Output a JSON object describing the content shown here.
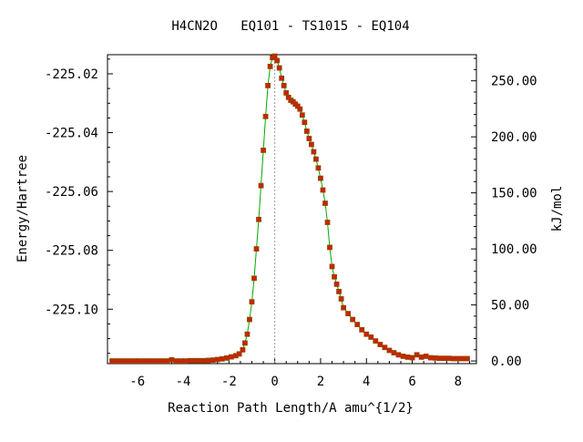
{
  "chart_data": {
    "type": "line",
    "title": "H4CN2O   EQ101 - TS1015 - EQ104",
    "xlabel": "Reaction Path Length/A amu^{1/2}",
    "ylabel_left": "Energy/Hartree",
    "ylabel_right": "kJ/mol",
    "xlim": [
      -7.3,
      8.8
    ],
    "ylim": [
      -225.1185,
      -225.0135
    ],
    "x_ticks": [
      -6,
      -4,
      -2,
      0,
      2,
      4,
      6,
      8
    ],
    "x_tick_labels": [
      "-6",
      "-4",
      "-2",
      "0",
      "2",
      "4",
      "6",
      "8"
    ],
    "y_ticks_left": [
      -225.02,
      -225.04,
      -225.06,
      -225.08,
      -225.1
    ],
    "y_tick_labels_left": [
      "-225.02",
      "-225.04",
      "-225.06",
      "-225.08",
      "-225.10"
    ],
    "y_ticks_right_kj": [
      0,
      50,
      100,
      150,
      200,
      250
    ],
    "y_tick_labels_right": [
      "0.00",
      "50.00",
      "100.00",
      "150.00",
      "200.00",
      "250.00"
    ],
    "right_axis_zero_energy": -225.1176,
    "kj_per_hartree": 2625.5,
    "ts_x": 0,
    "ts_marker_style": "dotted-vertical",
    "line_color": "#00aa00",
    "marker_color": "#cc2200",
    "marker_edge_color": "#8b4a00",
    "grid": false,
    "series": [
      {
        "x": [
          -7.1,
          -6.9,
          -6.7,
          -6.5,
          -6.3,
          -6.1,
          -5.9,
          -5.7,
          -5.5,
          -5.3,
          -5.1,
          -4.9,
          -4.7,
          -4.5,
          -4.3,
          -4.1,
          -3.9,
          -3.7,
          -3.5,
          -3.3,
          -3.1,
          -2.9,
          -2.7,
          -2.5,
          -2.3,
          -2.1,
          -1.9,
          -1.7,
          -1.55,
          -1.4,
          -1.3,
          -1.2,
          -1.1,
          -1.0,
          -0.9,
          -0.8,
          -0.7,
          -0.6,
          -0.5,
          -0.4,
          -0.3,
          -0.2,
          -0.1,
          0.0,
          0.1,
          0.2,
          0.3,
          0.4,
          0.5,
          0.6,
          0.7,
          0.8,
          0.9,
          1.0,
          1.1,
          1.2,
          1.3,
          1.4,
          1.5,
          1.6,
          1.7,
          1.8,
          1.9,
          2.0,
          2.1,
          2.2,
          2.3,
          2.4,
          2.5,
          2.6,
          2.7,
          2.8,
          2.9,
          3.0,
          3.2,
          3.4,
          3.6,
          3.8,
          4.0,
          4.2,
          4.4,
          4.6,
          4.8,
          5.0,
          5.2,
          5.4,
          5.6,
          5.8,
          6.0,
          6.2,
          6.4,
          6.6,
          6.8,
          7.0,
          7.2,
          7.4,
          7.6,
          7.8,
          8.0,
          8.2,
          8.4
        ],
        "y": [
          -225.1176,
          -225.1176,
          -225.1176,
          -225.1176,
          -225.1176,
          -225.1176,
          -225.1176,
          -225.1176,
          -225.1176,
          -225.1176,
          -225.1176,
          -225.1176,
          -225.1176,
          -225.1172,
          -225.1176,
          -225.1176,
          -225.1176,
          -225.1175,
          -225.1175,
          -225.1175,
          -225.1175,
          -225.1174,
          -225.1173,
          -225.1171,
          -225.1169,
          -225.1166,
          -225.1162,
          -225.1158,
          -225.1152,
          -225.1138,
          -225.1115,
          -225.1085,
          -225.1035,
          -225.0975,
          -225.0895,
          -225.0795,
          -225.0695,
          -225.058,
          -225.046,
          -225.0345,
          -225.024,
          -225.0175,
          -225.0145,
          -225.014,
          -225.0155,
          -225.018,
          -225.0215,
          -225.024,
          -225.0265,
          -225.028,
          -225.029,
          -225.0295,
          -225.0303,
          -225.031,
          -225.032,
          -225.034,
          -225.0365,
          -225.0395,
          -225.042,
          -225.044,
          -225.0465,
          -225.049,
          -225.052,
          -225.0555,
          -225.0595,
          -225.064,
          -225.0705,
          -225.079,
          -225.0855,
          -225.089,
          -225.0915,
          -225.094,
          -225.0965,
          -225.0995,
          -225.1015,
          -225.1035,
          -225.1052,
          -225.107,
          -225.1085,
          -225.1095,
          -225.1108,
          -225.112,
          -225.113,
          -225.114,
          -225.1148,
          -225.1155,
          -225.116,
          -225.1163,
          -225.1165,
          -225.1155,
          -225.1163,
          -225.116,
          -225.1165,
          -225.1166,
          -225.1167,
          -225.1167,
          -225.1167,
          -225.1168,
          -225.1168,
          -225.1168,
          -225.1168
        ]
      }
    ]
  }
}
